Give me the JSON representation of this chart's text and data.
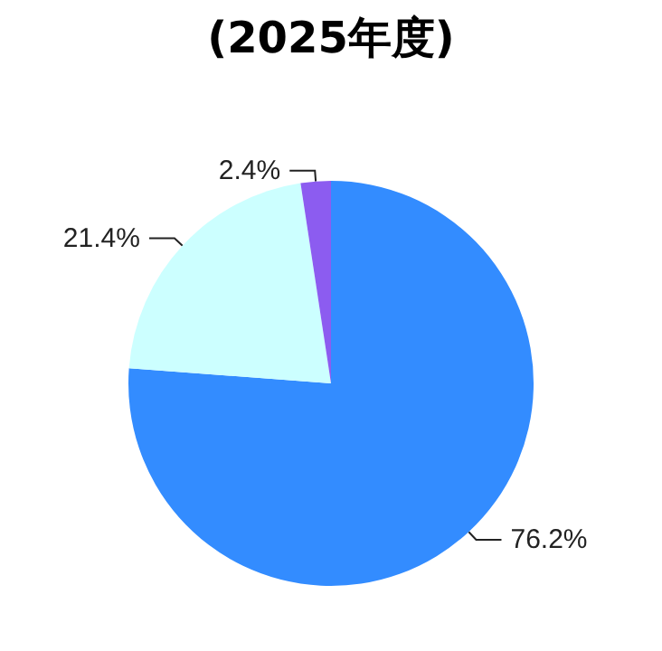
{
  "chart_data": {
    "type": "pie",
    "title": "(2025年度)",
    "categories": [
      null,
      null,
      null
    ],
    "values": [
      76.2,
      21.4,
      2.4
    ],
    "colors": [
      "#338cff",
      "#ccffff",
      "#8c5cf0"
    ],
    "value_labels": [
      "76.2%",
      "21.4%",
      "2.4%"
    ]
  }
}
